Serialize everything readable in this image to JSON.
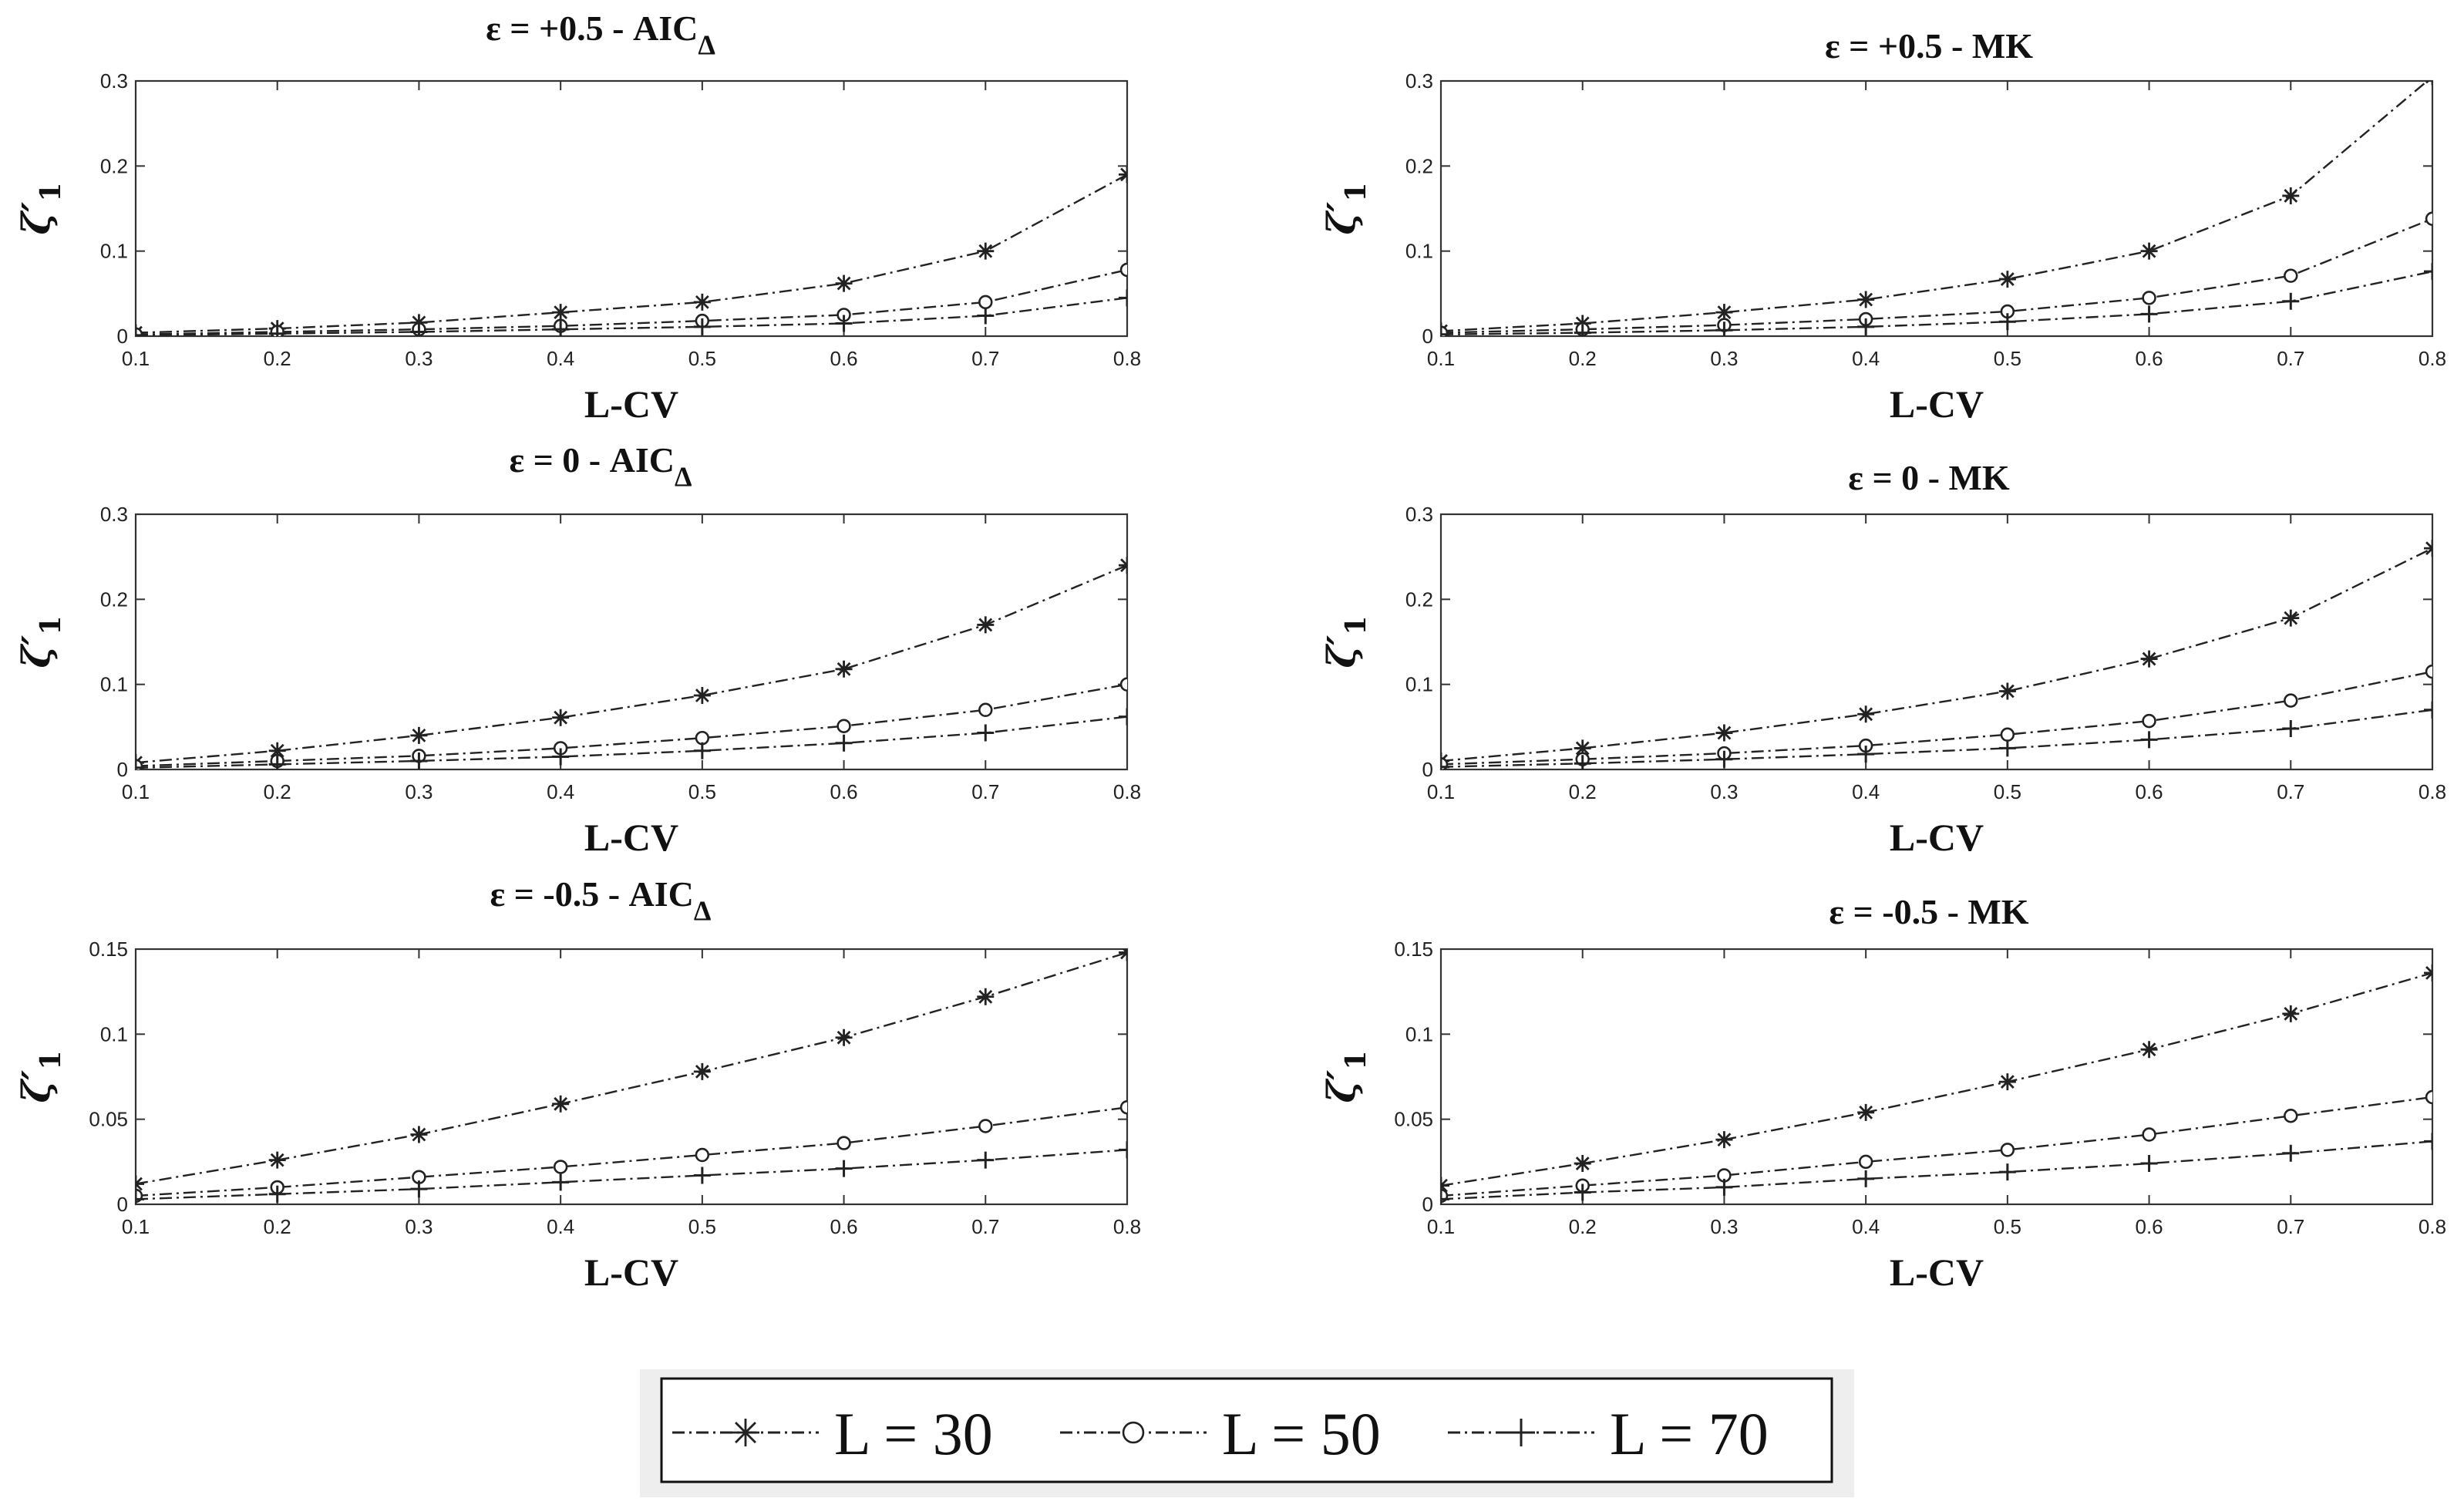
{
  "chart_data": [
    {
      "type": "line",
      "title_main": "ε = +0.5 - AIC",
      "title_sub": "Δ",
      "xlabel": "L-CV",
      "ylabel_main": "ζ′",
      "ylabel_sub": "1",
      "x": [
        0.1,
        0.2,
        0.3,
        0.4,
        0.5,
        0.6,
        0.7,
        0.8
      ],
      "xticks": [
        "0.1",
        "0.2",
        "0.3",
        "0.4",
        "0.5",
        "0.6",
        "0.7",
        "0.8"
      ],
      "xlim": [
        0.1,
        0.8
      ],
      "ylim": [
        0,
        0.3
      ],
      "yticks": [
        0,
        0.1,
        0.2,
        0.3
      ],
      "yticklabels": [
        "0",
        "0.1",
        "0.2",
        "0.3"
      ],
      "series": [
        {
          "marker": "asterisk",
          "values": [
            0.004,
            0.009,
            0.016,
            0.028,
            0.04,
            0.062,
            0.1,
            0.19
          ]
        },
        {
          "marker": "circle",
          "values": [
            0.002,
            0.005,
            0.008,
            0.012,
            0.018,
            0.025,
            0.04,
            0.078
          ]
        },
        {
          "marker": "plus",
          "values": [
            0.001,
            0.003,
            0.005,
            0.008,
            0.011,
            0.015,
            0.024,
            0.045
          ]
        }
      ]
    },
    {
      "type": "line",
      "title_main": "ε = +0.5 - MK",
      "title_sub": "",
      "xlabel": "L-CV",
      "ylabel_main": "ζ′",
      "ylabel_sub": "1",
      "x": [
        0.1,
        0.2,
        0.3,
        0.4,
        0.5,
        0.6,
        0.7,
        0.8
      ],
      "xticks": [
        "0.1",
        "0.2",
        "0.3",
        "0.4",
        "0.5",
        "0.6",
        "0.7",
        "0.8"
      ],
      "xlim": [
        0.1,
        0.8
      ],
      "ylim": [
        0,
        0.3
      ],
      "yticks": [
        0,
        0.1,
        0.2,
        0.3
      ],
      "yticklabels": [
        "0",
        "0.1",
        "0.2",
        "0.3"
      ],
      "series": [
        {
          "marker": "asterisk",
          "values": [
            0.006,
            0.015,
            0.028,
            0.043,
            0.067,
            0.1,
            0.165,
            0.305
          ]
        },
        {
          "marker": "circle",
          "values": [
            0.004,
            0.008,
            0.013,
            0.02,
            0.029,
            0.045,
            0.071,
            0.138
          ]
        },
        {
          "marker": "plus",
          "values": [
            0.002,
            0.004,
            0.007,
            0.011,
            0.017,
            0.026,
            0.041,
            0.076
          ]
        }
      ]
    },
    {
      "type": "line",
      "title_main": "ε = 0 - AIC",
      "title_sub": "Δ",
      "xlabel": "L-CV",
      "ylabel_main": "ζ′",
      "ylabel_sub": "1",
      "x": [
        0.1,
        0.2,
        0.3,
        0.4,
        0.5,
        0.6,
        0.7,
        0.8
      ],
      "xticks": [
        "0.1",
        "0.2",
        "0.3",
        "0.4",
        "0.5",
        "0.6",
        "0.7",
        "0.8"
      ],
      "xlim": [
        0.1,
        0.8
      ],
      "ylim": [
        0,
        0.3
      ],
      "yticks": [
        0,
        0.1,
        0.2,
        0.3
      ],
      "yticklabels": [
        "0",
        "0.1",
        "0.2",
        "0.3"
      ],
      "series": [
        {
          "marker": "asterisk",
          "values": [
            0.008,
            0.022,
            0.04,
            0.061,
            0.087,
            0.118,
            0.17,
            0.24
          ]
        },
        {
          "marker": "circle",
          "values": [
            0.004,
            0.01,
            0.016,
            0.025,
            0.037,
            0.051,
            0.07,
            0.1
          ]
        },
        {
          "marker": "plus",
          "values": [
            0.002,
            0.006,
            0.01,
            0.015,
            0.022,
            0.031,
            0.043,
            0.062
          ]
        }
      ]
    },
    {
      "type": "line",
      "title_main": "ε = 0 - MK",
      "title_sub": "",
      "xlabel": "L-CV",
      "ylabel_main": "ζ′",
      "ylabel_sub": "1",
      "x": [
        0.1,
        0.2,
        0.3,
        0.4,
        0.5,
        0.6,
        0.7,
        0.8
      ],
      "xticks": [
        "0.1",
        "0.2",
        "0.3",
        "0.4",
        "0.5",
        "0.6",
        "0.7",
        "0.8"
      ],
      "xlim": [
        0.1,
        0.8
      ],
      "ylim": [
        0,
        0.3
      ],
      "yticks": [
        0,
        0.1,
        0.2,
        0.3
      ],
      "yticklabels": [
        "0",
        "0.1",
        "0.2",
        "0.3"
      ],
      "series": [
        {
          "marker": "asterisk",
          "values": [
            0.01,
            0.025,
            0.043,
            0.065,
            0.092,
            0.13,
            0.178,
            0.26
          ]
        },
        {
          "marker": "circle",
          "values": [
            0.006,
            0.012,
            0.019,
            0.028,
            0.041,
            0.057,
            0.081,
            0.115
          ]
        },
        {
          "marker": "plus",
          "values": [
            0.003,
            0.007,
            0.012,
            0.018,
            0.025,
            0.035,
            0.048,
            0.07
          ]
        }
      ]
    },
    {
      "type": "line",
      "title_main": "ε = -0.5 - AIC",
      "title_sub": "Δ",
      "xlabel": "L-CV",
      "ylabel_main": "ζ′",
      "ylabel_sub": "1",
      "x": [
        0.1,
        0.2,
        0.3,
        0.4,
        0.5,
        0.6,
        0.7,
        0.8
      ],
      "xticks": [
        "0.1",
        "0.2",
        "0.3",
        "0.4",
        "0.5",
        "0.6",
        "0.7",
        "0.8"
      ],
      "xlim": [
        0.1,
        0.8
      ],
      "ylim": [
        0,
        0.15
      ],
      "yticks": [
        0,
        0.05,
        0.1,
        0.15
      ],
      "yticklabels": [
        "0",
        "0.05",
        "0.1",
        "0.15"
      ],
      "series": [
        {
          "marker": "asterisk",
          "values": [
            0.012,
            0.026,
            0.041,
            0.059,
            0.078,
            0.098,
            0.122,
            0.148
          ]
        },
        {
          "marker": "circle",
          "values": [
            0.005,
            0.01,
            0.016,
            0.022,
            0.029,
            0.036,
            0.046,
            0.057
          ]
        },
        {
          "marker": "plus",
          "values": [
            0.003,
            0.006,
            0.009,
            0.013,
            0.017,
            0.021,
            0.026,
            0.032
          ]
        }
      ]
    },
    {
      "type": "line",
      "title_main": "ε = -0.5 - MK",
      "title_sub": "",
      "xlabel": "L-CV",
      "ylabel_main": "ζ′",
      "ylabel_sub": "1",
      "x": [
        0.1,
        0.2,
        0.3,
        0.4,
        0.5,
        0.6,
        0.7,
        0.8
      ],
      "xticks": [
        "0.1",
        "0.2",
        "0.3",
        "0.4",
        "0.5",
        "0.6",
        "0.7",
        "0.8"
      ],
      "xlim": [
        0.1,
        0.8
      ],
      "ylim": [
        0,
        0.15
      ],
      "yticks": [
        0,
        0.05,
        0.1,
        0.15
      ],
      "yticklabels": [
        "0",
        "0.05",
        "0.1",
        "0.15"
      ],
      "series": [
        {
          "marker": "asterisk",
          "values": [
            0.011,
            0.024,
            0.038,
            0.054,
            0.072,
            0.091,
            0.112,
            0.136
          ]
        },
        {
          "marker": "circle",
          "values": [
            0.005,
            0.011,
            0.017,
            0.025,
            0.032,
            0.041,
            0.052,
            0.063
          ]
        },
        {
          "marker": "plus",
          "values": [
            0.003,
            0.007,
            0.01,
            0.015,
            0.019,
            0.024,
            0.03,
            0.037
          ]
        }
      ]
    }
  ],
  "legend": {
    "placement": "bottom-center",
    "entries": [
      {
        "marker": "asterisk",
        "label": "L = 30"
      },
      {
        "marker": "circle",
        "label": "L = 50"
      },
      {
        "marker": "plus",
        "label": "L = 70"
      }
    ]
  },
  "colors": {
    "line": "#222222",
    "axis": "#333333",
    "background": "#ffffff",
    "legend_bg": "#eeeeee"
  }
}
